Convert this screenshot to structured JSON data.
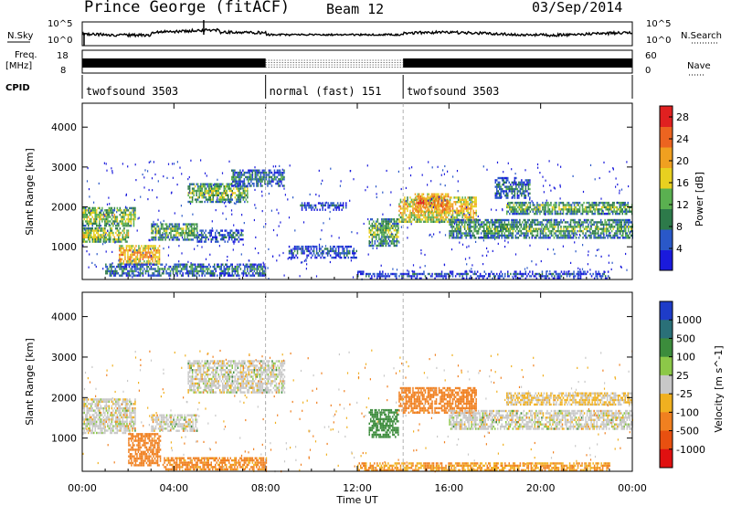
{
  "header": {
    "station": "Prince George (fitACF)",
    "beam": "Beam 12",
    "date": "03/Sep/2014"
  },
  "top_panels": {
    "nsky_label": "N.Sky",
    "nsky_ticks": [
      "10^5",
      "10^0"
    ],
    "nsearch_label": "N.Search",
    "nsearch_ticks": [
      "10^5",
      "10^0"
    ],
    "freq_label": "Freq.",
    "freq_unit": "[MHz]",
    "freq_ticks": [
      "18",
      "8"
    ],
    "nave_label": "Nave",
    "nave_ticks": [
      "60",
      "0"
    ],
    "cpid_label": "CPID",
    "cpid_segments": [
      {
        "label": "twofsound 3503",
        "start": 0,
        "end": 8
      },
      {
        "label": "normal (fast) 151",
        "start": 8,
        "end": 14
      },
      {
        "label": "twofsound 3503",
        "start": 14,
        "end": 24
      }
    ]
  },
  "colorbars": {
    "power": {
      "label": "Power [dB]",
      "ticks": [
        "28",
        "24",
        "20",
        "16",
        "12",
        "8",
        "4"
      ],
      "tick_values": [
        28,
        24,
        20,
        16,
        12,
        8,
        4
      ],
      "range": [
        0,
        30
      ],
      "colors": [
        "#1a1adc",
        "#2a58c8",
        "#2d7a4a",
        "#5ab050",
        "#e8d020",
        "#f0a020",
        "#ec6420",
        "#e02020"
      ]
    },
    "velocity": {
      "label": "Velocity [m s^-1]",
      "ticks": [
        "1000",
        "500",
        "100",
        "25",
        "-25",
        "-100",
        "-500",
        "-1000"
      ],
      "colors": [
        "#1e3cc8",
        "#2a7078",
        "#3c8c3c",
        "#8cc848",
        "#c8c8c8",
        "#f0b020",
        "#f08020",
        "#e85010",
        "#e01010"
      ]
    }
  },
  "chart_data": [
    {
      "type": "heatmap",
      "name": "power",
      "xlabel": "Time UT",
      "ylabel": "Slant Range [km]",
      "xlim": [
        0,
        24
      ],
      "ylim": [
        180,
        4600
      ],
      "x_ticks": [
        "00:00",
        "04:00",
        "08:00",
        "12:00",
        "16:00",
        "20:00",
        "00:00"
      ],
      "y_ticks": [
        1000,
        2000,
        3000,
        4000
      ],
      "bands": [
        {
          "t0": 0.0,
          "t1": 2.3,
          "r0": 1500,
          "r1": 1950,
          "p": 16
        },
        {
          "t0": 0.0,
          "t1": 2.0,
          "r0": 1100,
          "r1": 1450,
          "p": 17
        },
        {
          "t0": 1.6,
          "t1": 3.4,
          "r0": 550,
          "r1": 1000,
          "p": 22
        },
        {
          "t0": 3.0,
          "t1": 5.0,
          "r0": 1150,
          "r1": 1550,
          "p": 14
        },
        {
          "t0": 4.6,
          "t1": 7.2,
          "r0": 2100,
          "r1": 2550,
          "p": 15
        },
        {
          "t0": 6.5,
          "t1": 8.8,
          "r0": 2500,
          "r1": 2900,
          "p": 10
        },
        {
          "t0": 5.0,
          "t1": 7.0,
          "r0": 1100,
          "r1": 1400,
          "p": 8
        },
        {
          "t0": 9.0,
          "t1": 12.0,
          "r0": 700,
          "r1": 1000,
          "p": 7
        },
        {
          "t0": 9.5,
          "t1": 11.5,
          "r0": 1900,
          "r1": 2100,
          "p": 6
        },
        {
          "t0": 12.5,
          "t1": 13.8,
          "r0": 1000,
          "r1": 1700,
          "p": 14
        },
        {
          "t0": 13.8,
          "t1": 17.2,
          "r0": 1600,
          "r1": 2250,
          "p": 20
        },
        {
          "t0": 14.5,
          "t1": 16.0,
          "r0": 1850,
          "r1": 2300,
          "p": 24
        },
        {
          "t0": 16.0,
          "t1": 24.0,
          "r0": 1200,
          "r1": 1650,
          "p": 13
        },
        {
          "t0": 18.5,
          "t1": 24.0,
          "r0": 1800,
          "r1": 2100,
          "p": 14
        },
        {
          "t0": 18.0,
          "t1": 19.5,
          "r0": 2200,
          "r1": 2700,
          "p": 9
        },
        {
          "t0": 1.0,
          "t1": 8.0,
          "r0": 250,
          "r1": 550,
          "p": 10
        },
        {
          "t0": 12.0,
          "t1": 23.0,
          "r0": 180,
          "r1": 350,
          "p": 6
        }
      ]
    },
    {
      "type": "heatmap",
      "name": "velocity",
      "xlabel": "Time UT",
      "ylabel": "Slant Range [km]",
      "xlim": [
        0,
        24
      ],
      "ylim": [
        180,
        4600
      ],
      "x_ticks": [
        "00:00",
        "04:00",
        "08:00",
        "12:00",
        "16:00",
        "20:00",
        "00:00"
      ],
      "y_ticks": [
        1000,
        2000,
        3000,
        4000
      ],
      "bands": [
        {
          "t0": 0.0,
          "t1": 2.3,
          "r0": 1100,
          "r1": 1950,
          "v": 0
        },
        {
          "t0": 2.0,
          "t1": 3.4,
          "r0": 300,
          "r1": 1100,
          "v": -150
        },
        {
          "t0": 3.0,
          "t1": 5.0,
          "r0": 1150,
          "r1": 1550,
          "v": 0
        },
        {
          "t0": 4.6,
          "t1": 8.8,
          "r0": 2100,
          "r1": 2900,
          "v": 0
        },
        {
          "t0": 3.5,
          "t1": 8.0,
          "r0": 200,
          "r1": 500,
          "v": -80
        },
        {
          "t0": 12.5,
          "t1": 13.8,
          "r0": 1000,
          "r1": 1700,
          "v": 150
        },
        {
          "t0": 13.8,
          "t1": 17.2,
          "r0": 1600,
          "r1": 2250,
          "v": -200
        },
        {
          "t0": 16.0,
          "t1": 24.0,
          "r0": 1200,
          "r1": 1650,
          "v": 0
        },
        {
          "t0": 18.5,
          "t1": 24.0,
          "r0": 1800,
          "r1": 2100,
          "v": -30
        },
        {
          "t0": 12.0,
          "t1": 23.0,
          "r0": 180,
          "r1": 350,
          "v": -60
        }
      ]
    }
  ]
}
